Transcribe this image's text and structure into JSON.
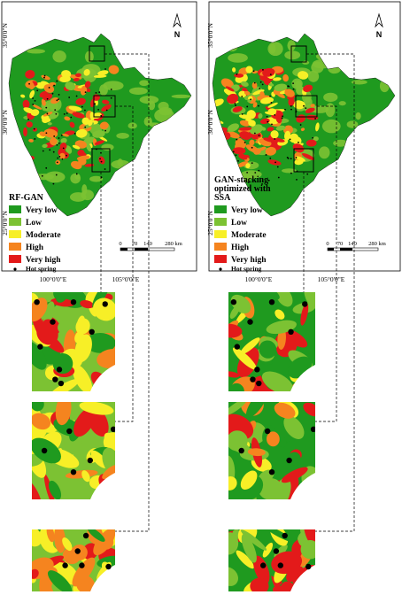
{
  "colors": {
    "very_low": "#1f9a1f",
    "low": "#7cc233",
    "moderate": "#f7ef27",
    "high": "#f5841f",
    "very_high": "#e31a1a",
    "hot_spring": "#000000"
  },
  "north_arrow": {
    "label": "N",
    "icon": "north-arrow-icon"
  },
  "latitude_labels": [
    "35°0'0\"N",
    "30°0'0\"N",
    "25°0'0\"N"
  ],
  "longitude_labels": [
    "100°0'0\"E",
    "105°0'0\"E"
  ],
  "scale_bar": {
    "ticks": [
      "0",
      "70",
      "140",
      "280 km"
    ]
  },
  "panels": [
    {
      "id": "left",
      "legend_title": "RF-GAN",
      "legend_items": [
        "Very low",
        "Low",
        "Moderate",
        "High",
        "Very high"
      ],
      "point_label": "Hot spring"
    },
    {
      "id": "right",
      "legend_title": "GAN-stacking optimized with SSA",
      "legend_title_lines": [
        "GAN-stacking",
        "optimized with",
        "SSA"
      ],
      "legend_items": [
        "Very low",
        "Low",
        "Moderate",
        "High",
        "Very high"
      ],
      "point_label": "Hot spring"
    }
  ]
}
